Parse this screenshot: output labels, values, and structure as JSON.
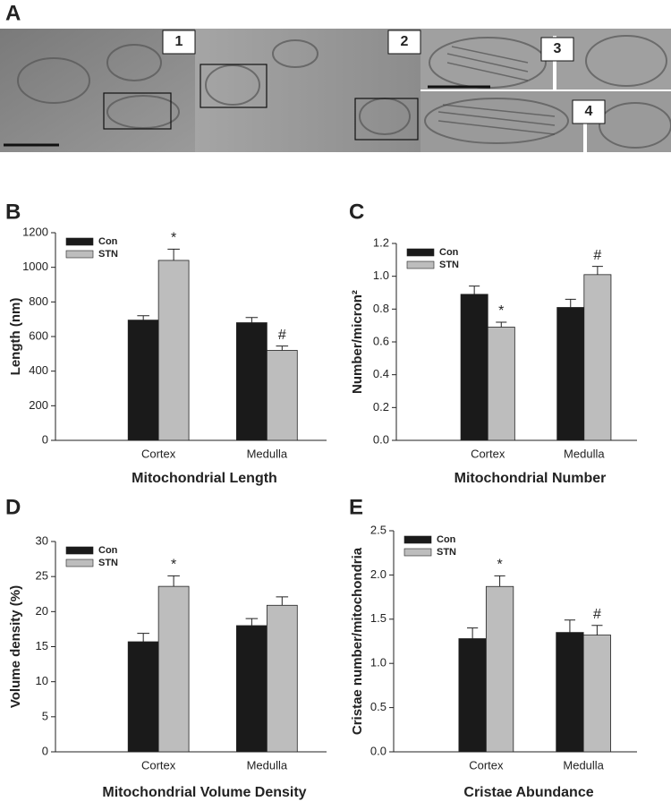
{
  "panel_a": {
    "label": "A",
    "insets": [
      "1",
      "2",
      "3",
      "4"
    ]
  },
  "chart_data": [
    {
      "type": "bar",
      "panel": "B",
      "title": "Mitochondrial Length",
      "ylabel": "Length (nm)",
      "categories": [
        "Cortex",
        "Medulla"
      ],
      "ylim": [
        0,
        1200
      ],
      "yticks": [
        0,
        200,
        400,
        600,
        800,
        1000,
        1200
      ],
      "series": [
        {
          "name": "Con",
          "color": "#1a1a1a",
          "values": [
            695,
            680
          ],
          "errors": [
            25,
            30
          ]
        },
        {
          "name": "STN",
          "color": "#bdbdbd",
          "values": [
            1040,
            520
          ],
          "errors": [
            65,
            25
          ],
          "markers": [
            "*",
            "#"
          ]
        }
      ]
    },
    {
      "type": "bar",
      "panel": "C",
      "title": "Mitochondrial Number",
      "ylabel": "Number/micron²",
      "categories": [
        "Cortex",
        "Medulla"
      ],
      "ylim": [
        0,
        1.2
      ],
      "yticks": [
        {
          "value": 0,
          "label": "0.0"
        },
        0.2,
        0.4,
        0.6,
        0.8,
        {
          "value": 1,
          "label": "1.0"
        },
        1.2
      ],
      "series": [
        {
          "name": "Con",
          "color": "#1a1a1a",
          "values": [
            0.89,
            0.81
          ],
          "errors": [
            0.05,
            0.05
          ]
        },
        {
          "name": "STN",
          "color": "#bdbdbd",
          "values": [
            0.69,
            1.01
          ],
          "errors": [
            0.03,
            0.05
          ],
          "markers": [
            "*",
            "#"
          ]
        }
      ]
    },
    {
      "type": "bar",
      "panel": "D",
      "title": "Mitochondrial Volume Density",
      "ylabel": "Volume density (%)",
      "categories": [
        "Cortex",
        "Medulla"
      ],
      "ylim": [
        0,
        30
      ],
      "yticks": [
        0,
        5,
        10,
        15,
        20,
        25,
        30
      ],
      "series": [
        {
          "name": "Con",
          "color": "#1a1a1a",
          "values": [
            15.7,
            18.0
          ],
          "errors": [
            1.2,
            1.0
          ]
        },
        {
          "name": "STN",
          "color": "#bdbdbd",
          "values": [
            23.6,
            20.9
          ],
          "errors": [
            1.5,
            1.2
          ],
          "markers": [
            "*",
            null
          ]
        }
      ]
    },
    {
      "type": "bar",
      "panel": "E",
      "title": "Cristae Abundance",
      "ylabel": "Cristae number/mitochondria",
      "categories": [
        "Cortex",
        "Medulla"
      ],
      "ylim": [
        0,
        2.5
      ],
      "yticks": [
        {
          "value": 0,
          "label": "0.0"
        },
        0.5,
        {
          "value": 1,
          "label": "1.0"
        },
        1.5,
        {
          "value": 2,
          "label": "2.0"
        },
        2.5
      ],
      "series": [
        {
          "name": "Con",
          "color": "#1a1a1a",
          "values": [
            1.28,
            1.35
          ],
          "errors": [
            0.12,
            0.14
          ]
        },
        {
          "name": "STN",
          "color": "#bdbdbd",
          "values": [
            1.87,
            1.32
          ],
          "errors": [
            0.12,
            0.11
          ],
          "markers": [
            "*",
            "#"
          ]
        }
      ]
    }
  ]
}
